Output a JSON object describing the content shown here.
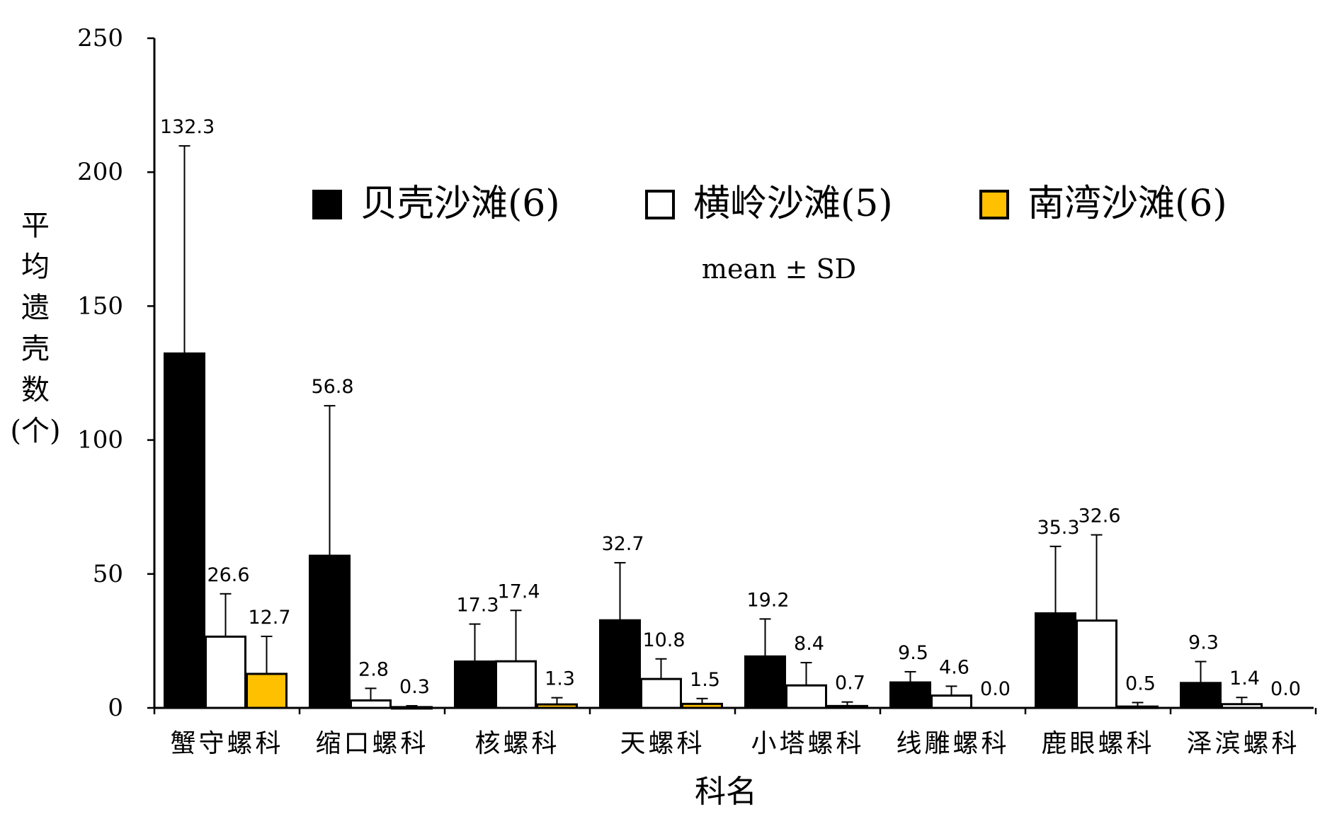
{
  "chart_data": {
    "type": "bar",
    "title": "",
    "xlabel": "科名",
    "ylabel_chars": [
      "平",
      "均",
      "遗",
      "壳",
      "数",
      "(个)"
    ],
    "ylim": [
      0,
      250
    ],
    "yticks": [
      "0",
      "50",
      "100",
      "150",
      "200",
      "250"
    ],
    "annotation": "mean ± SD",
    "legend_position": "top-right",
    "categories": [
      "蟹守螺科",
      "缩口螺科",
      "核螺科",
      "天螺科",
      "小塔螺科",
      "线雕螺科",
      "鹿眼螺科",
      "泽滨螺科"
    ],
    "series": [
      {
        "name": "贝壳沙滩(6)",
        "color": "#000000",
        "values": [
          132.3,
          56.8,
          17.3,
          32.7,
          19.2,
          9.5,
          35.3,
          9.3
        ],
        "labels": [
          "132.3",
          "56.8",
          "17.3",
          "32.7",
          "19.2",
          "9.5",
          "35.3",
          "9.3"
        ],
        "sd": [
          77.5,
          56,
          14,
          21.5,
          14,
          4,
          25,
          8
        ]
      },
      {
        "name": "横岭沙滩(5)",
        "color": "#ffffff",
        "values": [
          26.6,
          2.8,
          17.4,
          10.8,
          8.4,
          4.6,
          32.6,
          1.4
        ],
        "labels": [
          "26.6",
          "2.8",
          "17.4",
          "10.8",
          "8.4",
          "4.6",
          "32.6",
          "1.4"
        ],
        "sd": [
          16,
          4.5,
          19,
          7.5,
          8.5,
          3.5,
          32,
          2.5
        ]
      },
      {
        "name": "南湾沙滩(6)",
        "color": "#FFC000",
        "values": [
          12.7,
          0.3,
          1.3,
          1.5,
          0.7,
          0.0,
          0.5,
          0.0
        ],
        "labels": [
          "12.7",
          "0.3",
          "1.3",
          "1.5",
          "0.7",
          "0.0",
          "0.5",
          "0.0"
        ],
        "sd": [
          14,
          0.5,
          2.5,
          2,
          1.5,
          0,
          1.5,
          0
        ]
      }
    ]
  }
}
